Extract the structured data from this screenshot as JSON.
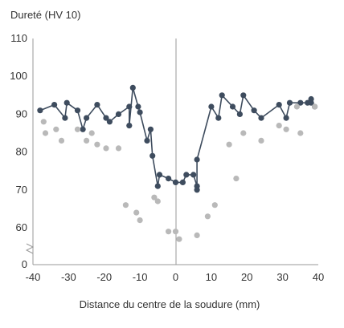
{
  "chart_data": {
    "type": "scatter",
    "ylabel": "Dureté (HV 10)",
    "xlabel": "Distance du centre de la soudure (mm)",
    "x_ticks": [
      "-40",
      "-30",
      "-20",
      "-10",
      "0",
      "10",
      "20",
      "30",
      "40"
    ],
    "y_ticks": [
      "0",
      "60",
      "70",
      "80",
      "90",
      "100",
      "110"
    ],
    "axis_break": true,
    "xlim": [
      -40,
      40
    ],
    "ylim_visible": [
      55,
      110
    ],
    "grid": false,
    "series": [
      {
        "style": "line-markers",
        "color": "#3e4c5e",
        "points": [
          [
            -38,
            91
          ],
          [
            -34,
            92.5
          ],
          [
            -31,
            89
          ],
          [
            -30.5,
            93
          ],
          [
            -27.5,
            91
          ],
          [
            -26,
            86
          ],
          [
            -25,
            89
          ],
          [
            -22,
            92.5
          ],
          [
            -19.5,
            89
          ],
          [
            -18.5,
            88
          ],
          [
            -16,
            90
          ],
          [
            -13,
            92
          ],
          [
            -13,
            87
          ],
          [
            -12,
            97
          ],
          [
            -10.5,
            92
          ],
          [
            -10,
            90.5
          ],
          [
            -8,
            83
          ],
          [
            -7,
            86
          ],
          [
            -6.5,
            79
          ],
          [
            -5,
            71
          ],
          [
            -4.5,
            74
          ],
          [
            -2,
            73
          ],
          [
            0,
            72
          ],
          [
            2,
            72
          ],
          [
            3,
            74
          ],
          [
            5,
            74
          ],
          [
            6,
            71
          ],
          [
            6,
            70
          ],
          [
            6,
            78
          ],
          [
            10,
            92
          ],
          [
            12,
            89
          ],
          [
            13,
            95
          ],
          [
            16,
            92
          ],
          [
            18,
            90
          ],
          [
            19,
            95
          ],
          [
            22,
            91
          ],
          [
            24,
            89
          ],
          [
            29,
            92.5
          ],
          [
            31,
            89
          ],
          [
            32,
            93
          ],
          [
            35,
            93
          ],
          [
            37,
            93
          ],
          [
            38,
            94
          ],
          [
            38,
            93
          ],
          [
            39,
            92
          ]
        ]
      },
      {
        "style": "markers",
        "color": "#b9b9b9",
        "points": [
          [
            -37,
            88
          ],
          [
            -36.5,
            85
          ],
          [
            -33.5,
            86
          ],
          [
            -32,
            83
          ],
          [
            -27.5,
            86
          ],
          [
            -25,
            83
          ],
          [
            -23.5,
            85
          ],
          [
            -22,
            82
          ],
          [
            -19.5,
            81
          ],
          [
            -16,
            81
          ],
          [
            -14,
            66
          ],
          [
            -11,
            64
          ],
          [
            -10,
            62
          ],
          [
            -6,
            68
          ],
          [
            -5,
            67
          ],
          [
            -2,
            59
          ],
          [
            0,
            59
          ],
          [
            1,
            57
          ],
          [
            6,
            58
          ],
          [
            9,
            63
          ],
          [
            11,
            66
          ],
          [
            15,
            82
          ],
          [
            17,
            73
          ],
          [
            19,
            85
          ],
          [
            24,
            83
          ],
          [
            29,
            87
          ],
          [
            31,
            86
          ],
          [
            34,
            92
          ],
          [
            35,
            85
          ],
          [
            39,
            92
          ]
        ]
      }
    ]
  }
}
